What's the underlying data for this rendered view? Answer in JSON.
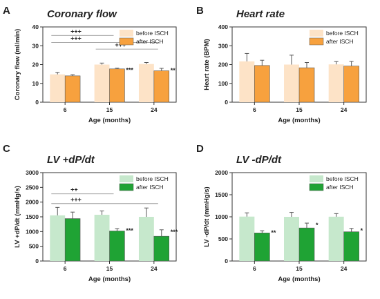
{
  "chart_data": [
    {
      "panel": "A",
      "type": "bar",
      "title": "Coronary flow",
      "xlabel": "Age (months)",
      "ylabel": "Coronary flow (ml/min)",
      "categories": [
        "6",
        "15",
        "24"
      ],
      "ylim": [
        0,
        40
      ],
      "yticks": [
        0,
        10,
        20,
        30,
        40
      ],
      "legend_position": "top-right",
      "series": [
        {
          "name": "before ISCH",
          "color": "#fde3c7",
          "values": [
            14.8,
            20.0,
            20.3
          ],
          "errors": [
            1.0,
            0.8,
            0.8
          ]
        },
        {
          "name": "after ISCH",
          "color": "#f7a13e",
          "values": [
            14.0,
            17.7,
            16.7
          ],
          "errors": [
            0.6,
            0.4,
            1.3
          ]
        }
      ],
      "significance": [
        {
          "label": "***",
          "category": 1,
          "series": 1
        },
        {
          "label": "**",
          "category": 2,
          "series": 1
        }
      ],
      "brackets": [
        {
          "label": "+++",
          "from": 0,
          "to": 1,
          "y": 35.5
        },
        {
          "label": "+++",
          "from": 0,
          "to": 2,
          "y": 31.8
        },
        {
          "label": "+++",
          "from": 1,
          "to": 2,
          "y": 28.2
        }
      ]
    },
    {
      "panel": "B",
      "type": "bar",
      "title": "Heart rate",
      "xlabel": "Age (months)",
      "ylabel": "Heart rate (BPM)",
      "categories": [
        "6",
        "15",
        "24"
      ],
      "ylim": [
        0,
        400
      ],
      "yticks": [
        0,
        100,
        200,
        300,
        400
      ],
      "legend_position": "top-right",
      "series": [
        {
          "name": "before ISCH",
          "color": "#fde3c7",
          "values": [
            217,
            200,
            201
          ],
          "errors": [
            42,
            50,
            15
          ]
        },
        {
          "name": "after ISCH",
          "color": "#f7a13e",
          "values": [
            195,
            183,
            192
          ],
          "errors": [
            28,
            28,
            25
          ]
        }
      ],
      "significance": [],
      "brackets": []
    },
    {
      "panel": "C",
      "type": "bar",
      "title": "LV +dP/dt",
      "xlabel": "Age (months)",
      "ylabel": "LV +dP/dt (mmHg/s)",
      "categories": [
        "6",
        "15",
        "24"
      ],
      "ylim": [
        0,
        3000
      ],
      "yticks": [
        0,
        500,
        1000,
        1500,
        2000,
        2500,
        3000
      ],
      "legend_position": "top-right",
      "series": [
        {
          "name": "before ISCH",
          "color": "#c6e8cc",
          "values": [
            1550,
            1570,
            1500
          ],
          "errors": [
            270,
            130,
            300
          ]
        },
        {
          "name": "after ISCH",
          "color": "#1fa334",
          "values": [
            1440,
            1020,
            840
          ],
          "errors": [
            220,
            80,
            220
          ]
        }
      ],
      "significance": [
        {
          "label": "***",
          "category": 1,
          "series": 1
        },
        {
          "label": "***",
          "category": 2,
          "series": 1
        }
      ],
      "brackets": [
        {
          "label": "++",
          "from": 0,
          "to": 1,
          "y": 2280
        },
        {
          "label": "+++",
          "from": 0,
          "to": 2,
          "y": 1950
        }
      ]
    },
    {
      "panel": "D",
      "type": "bar",
      "title": "LV -dP/dt",
      "xlabel": "Age (months)",
      "ylabel": "LV -dP/dt (mmHg/s)",
      "categories": [
        "6",
        "15",
        "24"
      ],
      "ylim": [
        0,
        2000
      ],
      "yticks": [
        0,
        500,
        1000,
        1500,
        2000
      ],
      "legend_position": "top-right",
      "series": [
        {
          "name": "before ISCH",
          "color": "#c6e8cc",
          "values": [
            1005,
            1000,
            1003
          ],
          "errors": [
            85,
            100,
            70
          ]
        },
        {
          "name": "after ISCH",
          "color": "#1fa334",
          "values": [
            635,
            748,
            662
          ],
          "errors": [
            50,
            110,
            75
          ]
        }
      ],
      "significance": [
        {
          "label": "**",
          "category": 0,
          "series": 1
        },
        {
          "label": "*",
          "category": 1,
          "series": 1
        },
        {
          "label": "*",
          "category": 2,
          "series": 1
        }
      ],
      "brackets": []
    }
  ]
}
